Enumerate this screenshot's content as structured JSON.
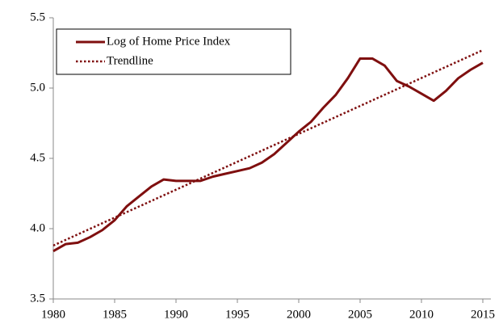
{
  "chart_data": {
    "type": "line",
    "xlim": [
      1980,
      2015
    ],
    "xticks": [
      1980,
      1985,
      1990,
      1995,
      2000,
      2005,
      2010,
      2015
    ],
    "ylim": [
      3.5,
      5.5
    ],
    "yticks": [
      3.5,
      {
        "value": 4.0,
        "label": "4.0"
      },
      4.5,
      {
        "value": 5.0,
        "label": "5.0"
      },
      5.5
    ],
    "legend": "top-left",
    "series": [
      {
        "name": "Log of Home Price Index",
        "color": "#7f0f0f",
        "style": "solid",
        "x": [
          1980,
          1981,
          1982,
          1983,
          1984,
          1985,
          1986,
          1987,
          1988,
          1989,
          1990,
          1991,
          1992,
          1993,
          1994,
          1995,
          1996,
          1997,
          1998,
          1999,
          2000,
          2001,
          2002,
          2003,
          2004,
          2005,
          2006,
          2007,
          2008,
          2009,
          2010,
          2011,
          2012,
          2013,
          2014,
          2015
        ],
        "values": [
          3.84,
          3.89,
          3.9,
          3.94,
          3.99,
          4.06,
          4.16,
          4.23,
          4.3,
          4.35,
          4.34,
          4.34,
          4.34,
          4.37,
          4.39,
          4.41,
          4.43,
          4.47,
          4.53,
          4.61,
          4.69,
          4.76,
          4.86,
          4.95,
          5.07,
          5.21,
          5.21,
          5.16,
          5.05,
          5.01,
          4.96,
          4.91,
          4.98,
          5.07,
          5.13,
          5.18
        ]
      },
      {
        "name": "Trendline",
        "color": "#7f0f0f",
        "style": "dotted",
        "x": [
          1980,
          2015
        ],
        "values": [
          3.88,
          5.27
        ]
      }
    ]
  }
}
